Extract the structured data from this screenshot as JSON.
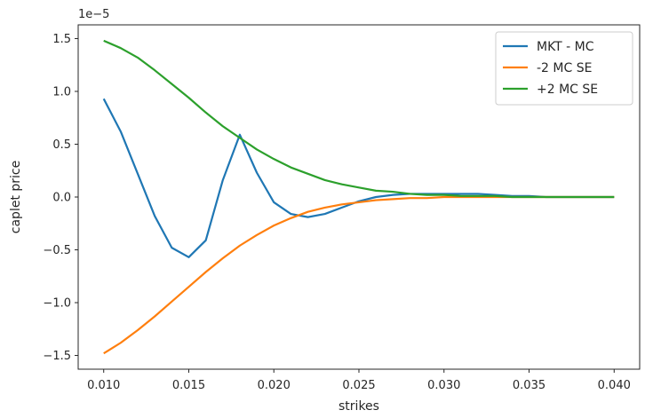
{
  "chart_data": {
    "type": "line",
    "title": "",
    "xlabel": "strikes",
    "ylabel": "caplet price",
    "y_offset_label": "1e−5",
    "xlim": [
      0.0085,
      0.0415
    ],
    "ylim": [
      -1.63,
      1.63
    ],
    "x_ticks": [
      0.01,
      0.015,
      0.02,
      0.025,
      0.03,
      0.035,
      0.04
    ],
    "x_tick_labels": [
      "0.010",
      "0.015",
      "0.020",
      "0.025",
      "0.030",
      "0.035",
      "0.040"
    ],
    "y_ticks": [
      -1.5,
      -1.0,
      -0.5,
      0.0,
      0.5,
      1.0,
      1.5
    ],
    "y_tick_labels": [
      "−1.5",
      "−1.0",
      "−0.5",
      "0.0",
      "0.5",
      "1.0",
      "1.5"
    ],
    "grid": false,
    "legend_position": "top-right",
    "x": [
      0.01,
      0.011,
      0.012,
      0.013,
      0.014,
      0.015,
      0.016,
      0.017,
      0.018,
      0.019,
      0.02,
      0.021,
      0.022,
      0.023,
      0.024,
      0.025,
      0.026,
      0.027,
      0.028,
      0.029,
      0.03,
      0.031,
      0.032,
      0.033,
      0.034,
      0.035,
      0.036,
      0.037,
      0.038,
      0.039,
      0.04
    ],
    "series": [
      {
        "name": "MKT - MC",
        "color": "#1f77b4",
        "values": [
          0.93,
          0.62,
          0.22,
          -0.18,
          -0.48,
          -0.57,
          -0.41,
          0.16,
          0.59,
          0.23,
          -0.05,
          -0.16,
          -0.19,
          -0.16,
          -0.1,
          -0.04,
          0.0,
          0.02,
          0.03,
          0.03,
          0.03,
          0.03,
          0.03,
          0.02,
          0.01,
          0.01,
          0.0,
          0.0,
          0.0,
          0.0,
          0.0
        ]
      },
      {
        "name": "-2 MC SE",
        "color": "#ff7f0e",
        "values": [
          -1.48,
          -1.38,
          -1.26,
          -1.13,
          -0.99,
          -0.85,
          -0.71,
          -0.58,
          -0.46,
          -0.36,
          -0.27,
          -0.2,
          -0.14,
          -0.1,
          -0.07,
          -0.05,
          -0.03,
          -0.02,
          -0.01,
          -0.01,
          0.0,
          0.0,
          0.0,
          0.0,
          0.0,
          0.0,
          0.0,
          0.0,
          0.0,
          0.0,
          0.0
        ]
      },
      {
        "name": "+2 MC SE",
        "color": "#2ca02c",
        "values": [
          1.48,
          1.41,
          1.32,
          1.2,
          1.07,
          0.94,
          0.8,
          0.67,
          0.56,
          0.45,
          0.36,
          0.28,
          0.22,
          0.16,
          0.12,
          0.09,
          0.06,
          0.05,
          0.03,
          0.02,
          0.02,
          0.01,
          0.01,
          0.01,
          0.0,
          0.0,
          0.0,
          0.0,
          0.0,
          0.0,
          0.0
        ]
      }
    ]
  }
}
